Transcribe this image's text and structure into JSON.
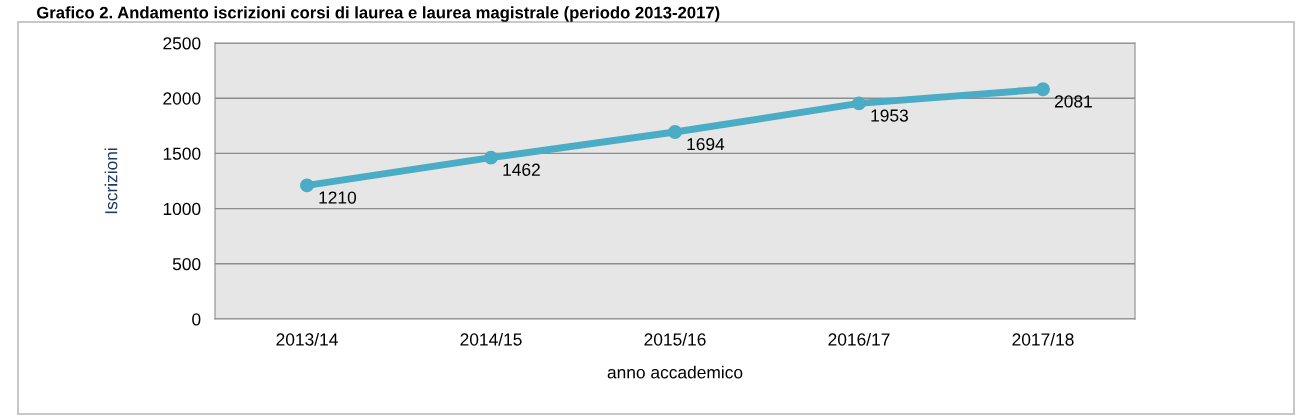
{
  "chart_data": {
    "type": "line",
    "title": "Grafico 2. Andamento iscrizioni corsi di laurea e laurea magistrale (periodo 2013-2017)",
    "xlabel": "anno accademico",
    "ylabel": "Iscrizioni",
    "categories": [
      "2013/14",
      "2014/15",
      "2015/16",
      "2016/17",
      "2017/18"
    ],
    "series": [
      {
        "color": "#4bacc6",
        "values": [
          1210,
          1462,
          1694,
          1953,
          2081
        ]
      }
    ],
    "ylim": [
      0,
      2500
    ],
    "yticks": [
      0,
      500,
      1000,
      1500,
      2000,
      2500
    ],
    "grid": "y",
    "marker": "circle",
    "data_labels": true,
    "legend": false
  }
}
